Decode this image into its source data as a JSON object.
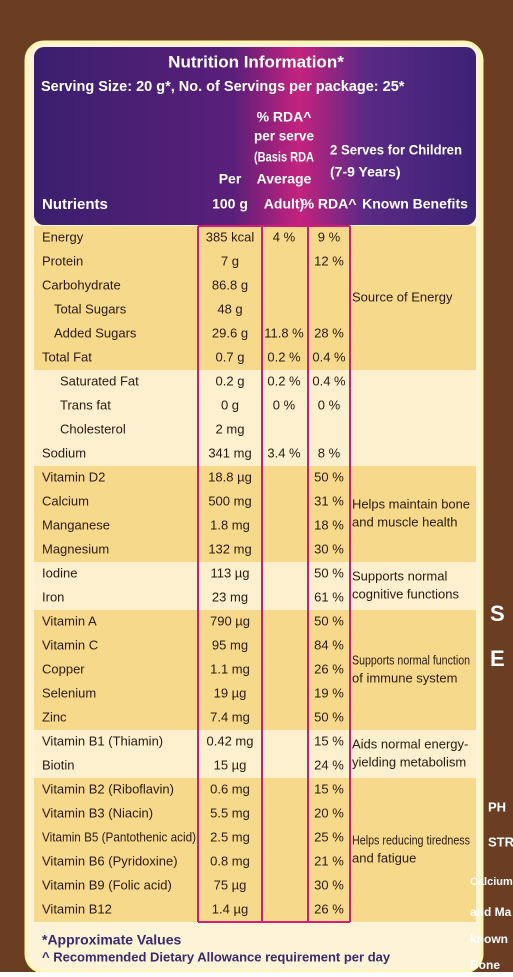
{
  "header": {
    "title": "Nutrition Information*",
    "serving": "Serving Size: 20 g*, No. of Servings per package: 25*",
    "col_nutrients": "Nutrients",
    "col_per100": [
      "Per",
      "100 g"
    ],
    "col_adult": [
      "% RDA^",
      "per serve",
      "(Basis RDA",
      "Average",
      "Adult)"
    ],
    "col_children": [
      "2 Serves for Children",
      "(7-9 Years)"
    ],
    "col_child_rda": "% RDA^",
    "col_benefits": "Known Benefits"
  },
  "groups": [
    {
      "benefit": [
        "Source of Energy"
      ],
      "rows": [
        [
          "Energy",
          "385 kcal",
          "4 %",
          "9 %"
        ],
        [
          "Protein",
          "7 g",
          null,
          "12 %"
        ],
        [
          "Carbohydrate",
          "86.8 g",
          null,
          null
        ],
        [
          "Total Sugars",
          "48 g",
          null,
          null
        ],
        [
          "Added Sugars",
          "29.6 g",
          "11.8 %",
          "28 %"
        ],
        [
          "Total Fat",
          "0.7 g",
          "0.2 %",
          "0.4 %"
        ]
      ]
    },
    {
      "rows": [
        [
          "Saturated Fat",
          "0.2 g",
          "0.2 %",
          "0.4 %"
        ],
        [
          "Trans fat",
          "0 g",
          "0 %",
          "0 %"
        ],
        [
          "Cholesterol",
          "2 mg",
          null,
          null
        ],
        [
          "Sodium",
          "341 mg",
          "3.4 %",
          "8 %"
        ]
      ]
    },
    {
      "benefit": [
        "Helps maintain bone",
        "and muscle health"
      ],
      "rows": [
        [
          "Vitamin D2",
          "18.8 µg",
          null,
          "50 %"
        ],
        [
          "Calcium",
          "500 mg",
          null,
          "31 %"
        ],
        [
          "Manganese",
          "1.8 mg",
          null,
          "18 %"
        ],
        [
          "Magnesium",
          "132 mg",
          null,
          "30 %"
        ]
      ]
    },
    {
      "benefit": [
        "Supports normal",
        "cognitive functions"
      ],
      "rows": [
        [
          "Iodine",
          "113 µg",
          null,
          "50 %"
        ],
        [
          "Iron",
          "23 mg",
          null,
          "61 %"
        ]
      ]
    },
    {
      "benefit": [
        "Supports normal function",
        "of immune system"
      ],
      "rows": [
        [
          "Vitamin A",
          "790 µg",
          null,
          "50 %"
        ],
        [
          "Vitamin C",
          "95 mg",
          null,
          "84 %"
        ],
        [
          "Copper",
          "1.1 mg",
          null,
          "26 %"
        ],
        [
          "Selenium",
          "19 µg",
          null,
          "19 %"
        ],
        [
          "Zinc",
          "7.4 mg",
          null,
          "50 %"
        ]
      ]
    },
    {
      "benefit": [
        "Aids normal energy-",
        "yielding metabolism"
      ],
      "rows": [
        [
          "Vitamin B1 (Thiamin)",
          "0.42 mg",
          null,
          "15 %"
        ],
        [
          "Biotin",
          "15 µg",
          null,
          "24 %"
        ]
      ]
    },
    {
      "benefit": [
        "Helps reducing tiredness",
        "and fatigue"
      ],
      "rows": [
        [
          "Vitamin B2 (Riboflavin)",
          "0.6 mg",
          null,
          "15 %"
        ],
        [
          "Vitamin B3 (Niacin)",
          "5.5 mg",
          null,
          "20 %"
        ],
        [
          "Vitamin B5 (Pantothenic acid)",
          "2.5 mg",
          null,
          "25 %"
        ],
        [
          "Vitamin B6 (Pyridoxine)",
          "0.8 mg",
          null,
          "21 %"
        ],
        [
          "Vitamin B9 (Folic acid)",
          "75 µg",
          null,
          "30 %"
        ],
        [
          "Vitamin B12",
          "1.4 µg",
          null,
          "26 %"
        ]
      ]
    }
  ],
  "footnotes": [
    "*Approximate Values",
    "^ Recommended Dietary Allowance requirement per day"
  ],
  "side_fragments": [
    "S",
    "E",
    "PH",
    "STR",
    "Calcium",
    "and Ma",
    "known",
    "Bone"
  ]
}
